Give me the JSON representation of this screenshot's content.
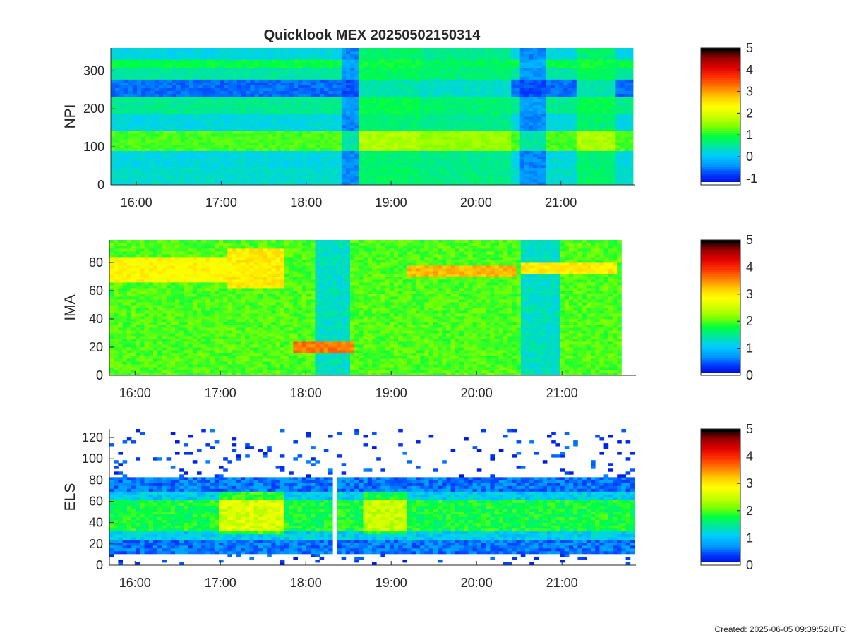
{
  "title": "Quicklook MEX 20250502150314",
  "footer": "Created: 2025-06-05 09:39:52UTC",
  "colors": {
    "colormap": [
      "#0000cc",
      "#0033ff",
      "#0099ff",
      "#00ccff",
      "#00e6a0",
      "#00ff40",
      "#80ff00",
      "#ccff00",
      "#ffff00",
      "#ffcc00",
      "#ff8000",
      "#ff3300",
      "#e00000",
      "#990000",
      "#000000"
    ],
    "axis": "#262626",
    "background": "#ffffff"
  },
  "chart_data": [
    {
      "type": "heatmap",
      "id": "npi",
      "ylabel": "NPI",
      "xlim": [
        "15:42",
        "21:51"
      ],
      "ylim": [
        0,
        360
      ],
      "x_ticks": [
        "16:00",
        "17:00",
        "18:00",
        "19:00",
        "20:00",
        "21:00"
      ],
      "y_ticks": [
        "0",
        "100",
        "200",
        "300"
      ],
      "colorbar": {
        "range": [
          -1.3,
          5
        ],
        "ticks": [
          "-1",
          "0",
          "1",
          "2",
          "3",
          "4",
          "5"
        ]
      },
      "row_bands": [
        {
          "y": [
            0,
            45
          ],
          "level": 0.3
        },
        {
          "y": [
            45,
            90
          ],
          "level": 0.2
        },
        {
          "y": [
            90,
            140
          ],
          "level": 1.2
        },
        {
          "y": [
            140,
            185
          ],
          "level": 0.2
        },
        {
          "y": [
            185,
            230
          ],
          "level": 0.6
        },
        {
          "y": [
            230,
            280
          ],
          "level": -0.6
        },
        {
          "y": [
            280,
            310
          ],
          "level": 0.5
        },
        {
          "y": [
            310,
            330
          ],
          "level": 0.9
        },
        {
          "y": [
            330,
            360
          ],
          "level": 0.2
        }
      ],
      "time_segments": [
        {
          "t": [
            "18:25",
            "18:38"
          ],
          "level": -0.8
        },
        {
          "t": [
            "18:38",
            "19:20"
          ],
          "level": 1.0
        },
        {
          "t": [
            "19:20",
            "20:25"
          ],
          "level": 0.8
        },
        {
          "t": [
            "20:30",
            "20:50"
          ],
          "level": -0.8
        },
        {
          "t": [
            "21:10",
            "21:40"
          ],
          "level": 1.0
        }
      ],
      "data_end": "21:50"
    },
    {
      "type": "heatmap",
      "id": "ima",
      "ylabel": "IMA",
      "xlim": [
        "15:42",
        "21:51"
      ],
      "ylim": [
        0,
        96
      ],
      "x_ticks": [
        "16:00",
        "17:00",
        "18:00",
        "19:00",
        "20:00",
        "21:00"
      ],
      "y_ticks": [
        "0",
        "20",
        "40",
        "60",
        "80"
      ],
      "colorbar": {
        "range": [
          0,
          5
        ],
        "ticks": [
          "0",
          "1",
          "2",
          "3",
          "4",
          "5"
        ]
      },
      "background_level": 2.0,
      "features": [
        {
          "label": "beam",
          "t": [
            "15:42",
            "17:05"
          ],
          "y": [
            66,
            84
          ],
          "level": 2.9
        },
        {
          "label": "beam",
          "t": [
            "17:05",
            "17:45"
          ],
          "y": [
            62,
            90
          ],
          "level": 3.0
        },
        {
          "label": "gap",
          "t": [
            "18:08",
            "18:32"
          ],
          "y": [
            0,
            96
          ],
          "level": 1.3
        },
        {
          "label": "low-energy",
          "t": [
            "17:52",
            "18:35"
          ],
          "y": [
            16,
            24
          ],
          "level": 3.6
        },
        {
          "label": "gap",
          "t": [
            "20:30",
            "21:00"
          ],
          "y": [
            0,
            96
          ],
          "level": 1.3
        },
        {
          "label": "beam",
          "t": [
            "19:12",
            "20:28"
          ],
          "y": [
            70,
            78
          ],
          "level": 3.3
        },
        {
          "label": "beam",
          "t": [
            "20:30",
            "21:40"
          ],
          "y": [
            72,
            80
          ],
          "level": 3.0
        }
      ],
      "data_end": "21:40"
    },
    {
      "type": "heatmap",
      "id": "els",
      "ylabel": "ELS",
      "xlim": [
        "15:42",
        "21:51"
      ],
      "ylim": [
        0,
        128
      ],
      "x_ticks": [
        "16:00",
        "17:00",
        "18:00",
        "19:00",
        "20:00",
        "21:00"
      ],
      "y_ticks": [
        "0",
        "20",
        "40",
        "60",
        "80",
        "100",
        "120"
      ],
      "colorbar": {
        "range": [
          0,
          5
        ],
        "ticks": [
          "0",
          "1",
          "2",
          "3",
          "4",
          "5"
        ]
      },
      "core_band": {
        "y": [
          25,
          70
        ],
        "level": 1.8
      },
      "enhancements": [
        {
          "t": [
            "17:00",
            "17:45"
          ],
          "y": [
            30,
            80
          ],
          "level": 2.6
        },
        {
          "t": [
            "18:40",
            "19:10"
          ],
          "y": [
            30,
            82
          ],
          "level": 2.5
        }
      ],
      "gaps": [
        {
          "t": [
            "18:19",
            "18:23"
          ]
        }
      ]
    }
  ]
}
